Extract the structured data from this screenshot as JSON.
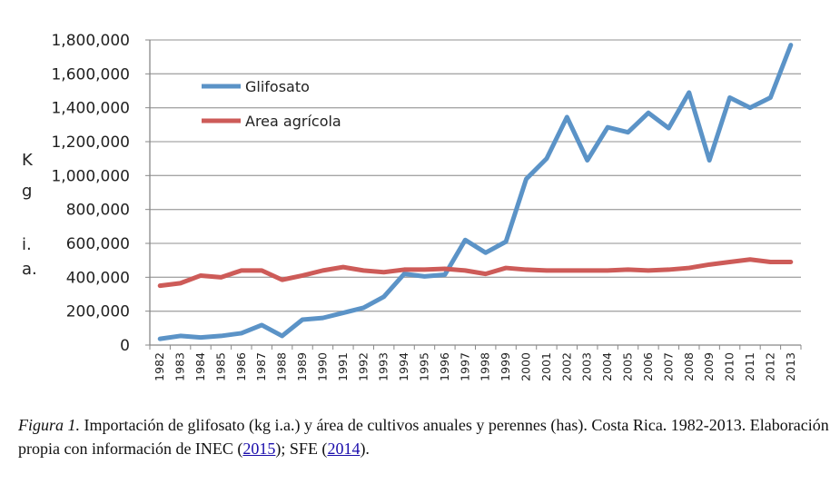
{
  "chart_data": {
    "type": "line",
    "ylabel": "K g i. a.",
    "ylabel_lines": [
      "K",
      "g",
      "i.",
      "a."
    ],
    "ylim": [
      0,
      1800000
    ],
    "yticks": [
      "0",
      "200,000",
      "400,000",
      "600,000",
      "800,000",
      "1,000,000",
      "1,200,000",
      "1,400,000",
      "1,600,000",
      "1,800,000"
    ],
    "grid": true,
    "legend": "top-left",
    "categories": [
      "1982",
      "1983",
      "1984",
      "1985",
      "1986",
      "1987",
      "1988",
      "1989",
      "1990",
      "1991",
      "1992",
      "1993",
      "1994",
      "1995",
      "1996",
      "1997",
      "1998",
      "1999",
      "2000",
      "2001",
      "2002",
      "2003",
      "2004",
      "2005",
      "2006",
      "2007",
      "2008",
      "2009",
      "2010",
      "2011",
      "2012",
      "2013"
    ],
    "series": [
      {
        "name": "Glifosato",
        "color": "#5b93c7",
        "values": [
          37000,
          54000,
          45000,
          54000,
          70000,
          118000,
          54000,
          150000,
          160000,
          190000,
          220000,
          285000,
          420000,
          405000,
          415000,
          620000,
          545000,
          610000,
          980000,
          1100000,
          1345000,
          1090000,
          1285000,
          1255000,
          1370000,
          1280000,
          1490000,
          1090000,
          1460000,
          1400000,
          1460000,
          1770000
        ]
      },
      {
        "name": "Area agrícola",
        "color": "#cd5b58",
        "values": [
          350000,
          365000,
          410000,
          400000,
          440000,
          440000,
          385000,
          410000,
          440000,
          460000,
          440000,
          430000,
          445000,
          445000,
          450000,
          440000,
          420000,
          455000,
          445000,
          440000,
          440000,
          440000,
          440000,
          445000,
          440000,
          445000,
          455000,
          475000,
          490000,
          505000,
          490000,
          490000
        ]
      }
    ]
  },
  "caption": {
    "figure_label": "Figura 1.",
    "text_1": " Importación de glifosato (kg i.a.) y área de cultivos anuales y perennes (has). Costa Rica. 1982-2013. Elaboración propia con información de INEC (",
    "link_1": "2015",
    "text_2": "); SFE (",
    "link_2": "2014",
    "text_3": ")."
  }
}
